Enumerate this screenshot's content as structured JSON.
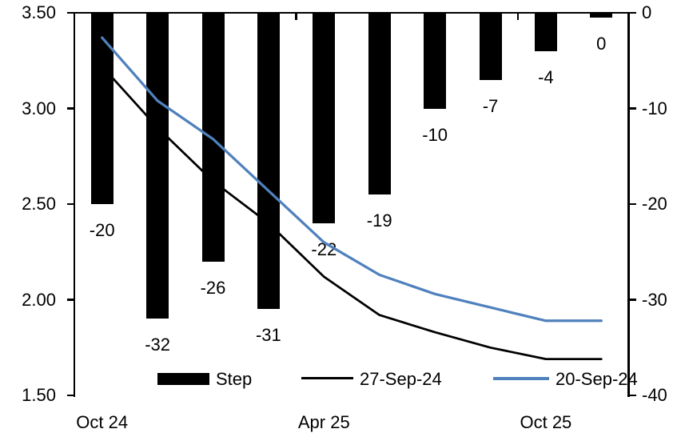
{
  "chart_data": {
    "type": "combo_bar_line",
    "n_categories": 10,
    "grid": "off",
    "x_axis": {
      "tick_labels": [
        {
          "text": "Oct 24",
          "category": 0
        },
        {
          "text": "Apr 25",
          "category": 4
        },
        {
          "text": "Oct 25",
          "category": 8
        }
      ]
    },
    "left_axis": {
      "min": 1.5,
      "max": 3.5,
      "tick_labels": [
        "3.50",
        "3.00",
        "2.50",
        "2.00",
        "1.50"
      ]
    },
    "right_axis": {
      "min": -40,
      "max": 0,
      "tick_labels": [
        "0",
        "-10",
        "-20",
        "-30",
        "-40"
      ]
    },
    "bar_series": {
      "name": "Step",
      "axis": "right",
      "color": "#000000",
      "values": [
        -20,
        -32,
        -26,
        -31,
        -22,
        -19,
        -10,
        -7,
        -4,
        -0.5
      ],
      "data_labels": [
        "-20",
        "-32",
        "-26",
        "-31",
        "-22",
        "-19",
        "-10",
        "-7",
        "-4",
        "0"
      ]
    },
    "line_series": [
      {
        "name": "27-Sep-24",
        "axis": "left",
        "color": "#000000",
        "values": [
          3.22,
          2.9,
          2.62,
          2.4,
          2.12,
          1.92,
          1.83,
          1.75,
          1.69,
          1.69
        ]
      },
      {
        "name": "20-Sep-24",
        "axis": "left",
        "color": "#4F81BD",
        "values": [
          3.37,
          3.04,
          2.84,
          2.57,
          2.3,
          2.13,
          2.03,
          1.96,
          1.89,
          1.89
        ]
      }
    ],
    "legend": [
      {
        "swatch": "bar",
        "label": "Step",
        "color": "#000000"
      },
      {
        "swatch": "line",
        "label": "27-Sep-24",
        "color": "#000000"
      },
      {
        "swatch": "line",
        "label": "20-Sep-24",
        "color": "#4F81BD"
      }
    ]
  }
}
